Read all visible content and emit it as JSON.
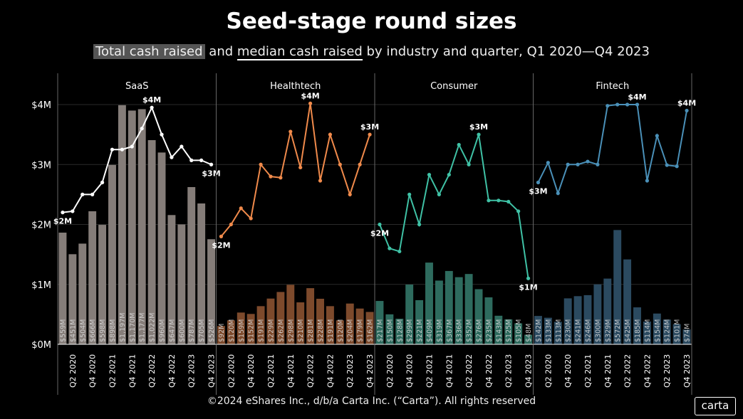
{
  "title": "Seed-stage round sizes",
  "subtitle": {
    "part1": "Total cash raised",
    "part2": " and ",
    "part3": "median cash raised",
    "part4": " by industry and quarter, Q1 2020—Q4 2023"
  },
  "footer": "©2024 eShares Inc., d/b/a Carta Inc. (“Carta”). All rights reserved",
  "logo": "carta",
  "chart_data": {
    "type": "bar+line",
    "ylim": [
      0,
      4
    ],
    "y_ticks": [
      "$0M",
      "$1M",
      "$2M",
      "$3M",
      "$4M"
    ],
    "quarters": [
      "Q1 2020",
      "Q2 2020",
      "Q3 2020",
      "Q4 2020",
      "Q1 2021",
      "Q2 2021",
      "Q3 2021",
      "Q4 2021",
      "Q1 2022",
      "Q2 2022",
      "Q3 2022",
      "Q4 2022",
      "Q1 2023",
      "Q2 2023",
      "Q3 2023",
      "Q4 2023"
    ],
    "x_tick_labels": [
      "Q2 2020",
      "Q4 2020",
      "Q2 2021",
      "Q4 2021",
      "Q2 2022",
      "Q4 2022",
      "Q2 2023",
      "Q4 2023"
    ],
    "grid": true,
    "panels": [
      {
        "name": "SaaS",
        "bar_color": "#857d79",
        "line_color": "#ffffff",
        "total_labels": [
          "$559M",
          "$451M",
          "$504M",
          "$666M",
          "$598M",
          "$898M",
          "$1,197M",
          "$1,170M",
          "$1,177M",
          "$1,022M",
          "$960M",
          "$647M",
          "$600M",
          "$787M",
          "$705M",
          "$526M"
        ],
        "total_millions": [
          559,
          451,
          504,
          666,
          598,
          898,
          1197,
          1170,
          1177,
          1022,
          960,
          647,
          600,
          787,
          705,
          526
        ],
        "median_millions": [
          2.2,
          2.22,
          2.5,
          2.5,
          2.7,
          3.25,
          3.25,
          3.3,
          3.6,
          3.95,
          3.5,
          3.12,
          3.3,
          3.07,
          3.07,
          3.0
        ],
        "annotations": [
          {
            "i": 0,
            "t": "$2M"
          },
          {
            "i": 9,
            "t": "$4M"
          },
          {
            "i": 15,
            "t": "$3M"
          }
        ]
      },
      {
        "name": "Healthtech",
        "bar_color": "#7d4a2c",
        "line_color": "#f08a4b",
        "total_labels": [
          "$92M",
          "$120M",
          "$159M",
          "$152M",
          "$191M",
          "$229M",
          "$262M",
          "$298M",
          "$210M",
          "$281M",
          "$228M",
          "$191M",
          "$120M",
          "$204M",
          "$179M",
          "$162M"
        ],
        "total_millions": [
          92,
          120,
          159,
          152,
          191,
          229,
          262,
          298,
          210,
          281,
          228,
          191,
          120,
          204,
          179,
          162
        ],
        "median_millions": [
          1.8,
          2.0,
          2.27,
          2.1,
          3.0,
          2.8,
          2.78,
          3.55,
          2.95,
          4.02,
          2.73,
          3.5,
          3.0,
          2.5,
          3.0,
          3.5
        ],
        "annotations": [
          {
            "i": 0,
            "t": "$2M"
          },
          {
            "i": 9,
            "t": "$4M"
          },
          {
            "i": 15,
            "t": "$3M"
          }
        ]
      },
      {
        "name": "Consumer",
        "bar_color": "#2e6b5e",
        "line_color": "#3fc1a5",
        "total_labels": [
          "$217M",
          "$150M",
          "$128M",
          "$299M",
          "$221M",
          "$409M",
          "$319M",
          "$367M",
          "$336M",
          "$352M",
          "$276M",
          "$235M",
          "$143M",
          "$125M",
          "$105M",
          "$48M"
        ],
        "total_millions": [
          217,
          150,
          128,
          299,
          221,
          409,
          319,
          367,
          336,
          352,
          276,
          235,
          143,
          125,
          105,
          48
        ],
        "median_millions": [
          2.0,
          1.6,
          1.55,
          2.5,
          2.0,
          2.83,
          2.5,
          2.83,
          3.33,
          3.0,
          3.5,
          2.4,
          2.4,
          2.38,
          2.22,
          1.1
        ],
        "annotations": [
          {
            "i": 0,
            "t": "$2M"
          },
          {
            "i": 10,
            "t": "$3M"
          },
          {
            "i": 15,
            "t": "$1M"
          }
        ]
      },
      {
        "name": "Fintech",
        "bar_color": "#2b4a60",
        "line_color": "#4a90b8",
        "total_labels": [
          "$142M",
          "$133M",
          "$113M",
          "$230M",
          "$241M",
          "$246M",
          "$300M",
          "$329M",
          "$572M",
          "$425M",
          "$185M",
          "$114M",
          "$154M",
          "$124M",
          "$101M",
          "$74M"
        ],
        "total_millions": [
          142,
          133,
          113,
          230,
          241,
          246,
          300,
          329,
          572,
          425,
          185,
          114,
          154,
          124,
          101,
          74
        ],
        "median_millions": [
          2.7,
          3.03,
          2.52,
          3.0,
          3.0,
          3.05,
          3.0,
          3.98,
          4.0,
          4.0,
          4.0,
          2.73,
          3.48,
          2.99,
          2.97,
          3.9
        ],
        "annotations": [
          {
            "i": 0,
            "t": "$3M"
          },
          {
            "i": 10,
            "t": "$4M"
          },
          {
            "i": 15,
            "t": "$4M"
          }
        ]
      }
    ]
  }
}
